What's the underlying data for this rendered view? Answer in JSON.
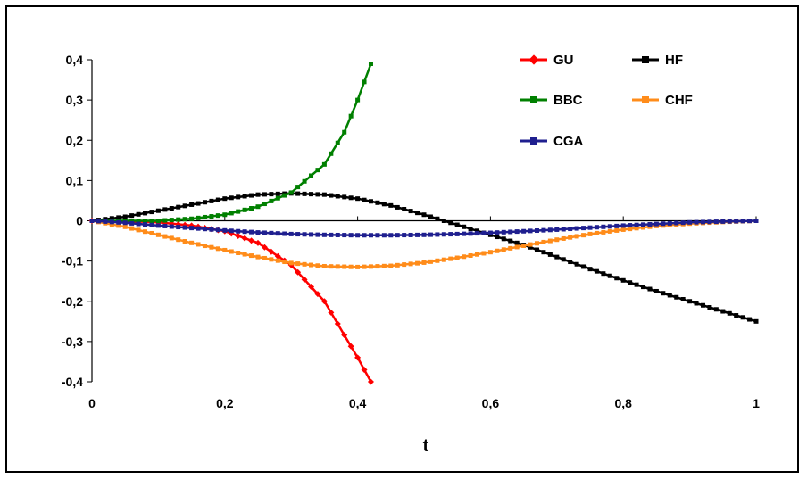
{
  "chart_data": {
    "type": "line",
    "title": "",
    "xlabel": "t",
    "ylabel": "",
    "xlim": [
      0,
      1
    ],
    "ylim": [
      -0.4,
      0.4
    ],
    "x_ticks": [
      "0",
      "0,2",
      "0,4",
      "0,6",
      "0,8",
      "1"
    ],
    "y_ticks": [
      "0,4",
      "0,3",
      "0,2",
      "0,1",
      "0",
      "-0,1",
      "-0,2",
      "-0,3",
      "-0,4"
    ],
    "grid": false,
    "legend_position": "top-right",
    "series": [
      {
        "name": "GU",
        "color": "#ff0000",
        "marker": "diamond",
        "x": [
          0,
          0.05,
          0.1,
          0.15,
          0.2,
          0.25,
          0.3,
          0.35,
          0.4,
          0.42
        ],
        "y": [
          0,
          -0.001,
          -0.004,
          -0.012,
          -0.026,
          -0.055,
          -0.11,
          -0.2,
          -0.34,
          -0.4
        ]
      },
      {
        "name": "HF",
        "color": "#000000",
        "marker": "square",
        "x": [
          0,
          0.05,
          0.1,
          0.15,
          0.2,
          0.25,
          0.3,
          0.35,
          0.4,
          0.45,
          0.5,
          0.55,
          0.6,
          0.65,
          0.7,
          0.75,
          0.8,
          0.85,
          0.9,
          0.95,
          1.0
        ],
        "y": [
          0,
          0.01,
          0.025,
          0.04,
          0.055,
          0.065,
          0.068,
          0.065,
          0.055,
          0.038,
          0.015,
          -0.01,
          -0.035,
          -0.06,
          -0.09,
          -0.12,
          -0.148,
          -0.175,
          -0.2,
          -0.225,
          -0.25
        ]
      },
      {
        "name": "BBC",
        "color": "#008000",
        "marker": "square",
        "x": [
          0,
          0.05,
          0.1,
          0.15,
          0.2,
          0.25,
          0.3,
          0.35,
          0.38,
          0.4,
          0.42
        ],
        "y": [
          0,
          0,
          0,
          0.005,
          0.015,
          0.035,
          0.07,
          0.14,
          0.22,
          0.3,
          0.39
        ]
      },
      {
        "name": "CHF",
        "color": "#ff8c1a",
        "marker": "square",
        "x": [
          0,
          0.05,
          0.1,
          0.15,
          0.2,
          0.25,
          0.3,
          0.35,
          0.4,
          0.45,
          0.5,
          0.55,
          0.6,
          0.65,
          0.7,
          0.75,
          0.8,
          0.85,
          0.9,
          0.95,
          1.0
        ],
        "y": [
          0,
          -0.015,
          -0.035,
          -0.055,
          -0.073,
          -0.09,
          -0.105,
          -0.113,
          -0.115,
          -0.112,
          -0.104,
          -0.092,
          -0.078,
          -0.062,
          -0.047,
          -0.033,
          -0.022,
          -0.013,
          -0.007,
          -0.003,
          0
        ]
      },
      {
        "name": "CGA",
        "color": "#1f1f8f",
        "marker": "square",
        "x": [
          0,
          0.05,
          0.1,
          0.15,
          0.2,
          0.25,
          0.3,
          0.35,
          0.4,
          0.45,
          0.5,
          0.55,
          0.6,
          0.65,
          0.7,
          0.75,
          0.8,
          0.85,
          0.9,
          0.95,
          1.0
        ],
        "y": [
          0,
          -0.005,
          -0.012,
          -0.018,
          -0.024,
          -0.029,
          -0.033,
          -0.035,
          -0.036,
          -0.036,
          -0.035,
          -0.033,
          -0.03,
          -0.026,
          -0.022,
          -0.017,
          -0.012,
          -0.008,
          -0.004,
          -0.002,
          0
        ]
      }
    ]
  }
}
